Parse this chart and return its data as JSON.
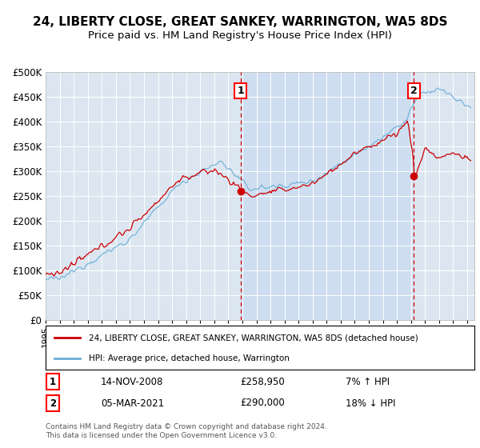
{
  "title": "24, LIBERTY CLOSE, GREAT SANKEY, WARRINGTON, WA5 8DS",
  "subtitle": "Price paid vs. HM Land Registry's House Price Index (HPI)",
  "legend_line1": "24, LIBERTY CLOSE, GREAT SANKEY, WARRINGTON, WA5 8DS (detached house)",
  "legend_line2": "HPI: Average price, detached house, Warrington",
  "annotation1_date": "14-NOV-2008",
  "annotation1_price": "£258,950",
  "annotation1_hpi": "7% ↑ HPI",
  "annotation2_date": "05-MAR-2021",
  "annotation2_price": "£290,000",
  "annotation2_hpi": "18% ↓ HPI",
  "footer": "Contains HM Land Registry data © Crown copyright and database right 2024.\nThis data is licensed under the Open Government Licence v3.0.",
  "hpi_color": "#6baed6",
  "price_color": "#cc0000",
  "vline_color": "#cc0000",
  "background_color": "#dce6f1",
  "shade_color": "#c6d9f0",
  "ylim": [
    0,
    500000
  ],
  "yticks": [
    0,
    50000,
    100000,
    150000,
    200000,
    250000,
    300000,
    350000,
    400000,
    450000,
    500000
  ],
  "title_fontsize": 11,
  "subtitle_fontsize": 9.5
}
